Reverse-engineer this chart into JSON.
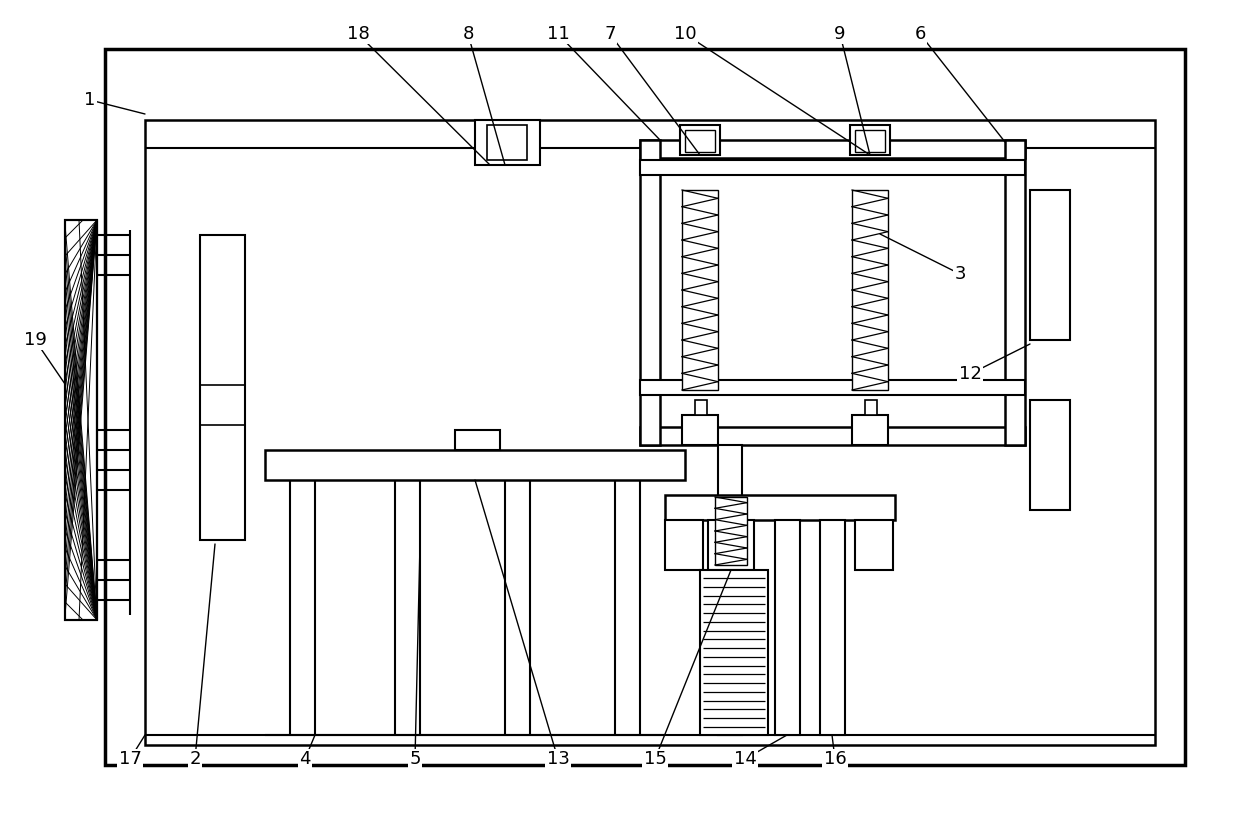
{
  "fig_width": 12.39,
  "fig_height": 8.14,
  "bg_color": "#ffffff",
  "lc": "#000000",
  "lw": 1.8
}
